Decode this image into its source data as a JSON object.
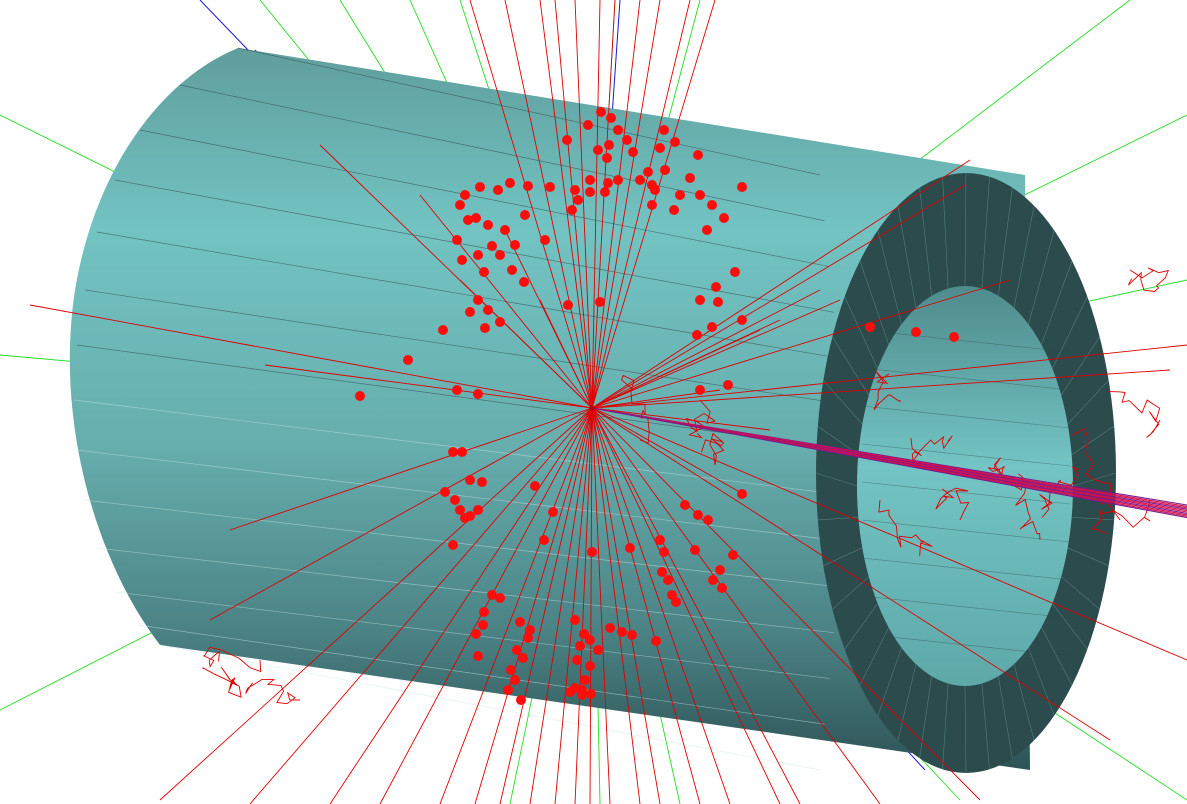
{
  "scene": {
    "subject": "particle-collision-event-display",
    "detector": "cylindrical-barrel-with-endcap-ring"
  },
  "colors": {
    "background": "#ffffff",
    "barrel_light": "#72c3c2",
    "barrel_mid": "#5e9f9f",
    "barrel_dark": "#2d4f51",
    "ring_face": "#2b4b4d",
    "inner_bore": "#6fbebf",
    "track_red": "#e00000",
    "track_green": "#22dd22",
    "track_blue": "#1a1ad8",
    "hit": "#ff0d0d",
    "beam": "#7a1a8a"
  }
}
